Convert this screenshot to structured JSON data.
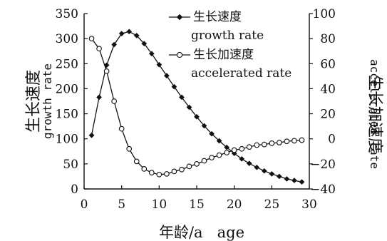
{
  "chart_data": {
    "type": "line",
    "x_label": "年龄/a   age",
    "xlim": [
      0,
      30
    ],
    "x_ticks": [
      0,
      5,
      10,
      15,
      20,
      25,
      30
    ],
    "y_left": {
      "label_cn": "生长速度",
      "label_en": "growth rate",
      "lim": [
        0,
        350
      ],
      "ticks": [
        0,
        50,
        100,
        150,
        200,
        250,
        300,
        350
      ]
    },
    "y_right": {
      "label_cn": "生长加速度",
      "label_en": "accelerated rate",
      "lim": [
        -40,
        100
      ],
      "ticks": [
        -40,
        -20,
        0,
        20,
        40,
        60,
        80,
        100
      ]
    },
    "legend_placement": "top-center",
    "series": [
      {
        "name_cn": "生长速度",
        "name_en": "growth rate",
        "axis": "left",
        "marker": "filled-diamond",
        "x": [
          1,
          2,
          3,
          4,
          5,
          6,
          7,
          8,
          9,
          10,
          11,
          12,
          13,
          14,
          15,
          16,
          17,
          18,
          19,
          20,
          21,
          22,
          23,
          24,
          25,
          26,
          27,
          28,
          29
        ],
        "values": [
          107,
          183,
          247,
          288,
          310,
          314,
          306,
          290,
          270,
          248,
          226,
          204,
          183,
          163,
          144,
          126,
          110,
          96,
          83,
          71,
          60,
          51,
          43,
          36,
          30,
          25,
          20,
          17,
          14
        ]
      },
      {
        "name_cn": "生长加速度",
        "name_en": "accelerated rate",
        "axis": "right",
        "marker": "open-circle",
        "x": [
          1,
          2,
          3,
          4,
          5,
          6,
          7,
          8,
          9,
          10,
          11,
          12,
          13,
          14,
          15,
          16,
          17,
          18,
          19,
          20,
          21,
          22,
          23,
          24,
          25,
          26,
          27,
          28,
          29
        ],
        "values": [
          80,
          72,
          54,
          30,
          8,
          -8,
          -18,
          -24,
          -27,
          -28.5,
          -28,
          -26,
          -24.5,
          -22,
          -20,
          -17.5,
          -15,
          -13,
          -11,
          -9,
          -8,
          -6.5,
          -5,
          -4.5,
          -3.5,
          -3,
          -2,
          -1.5,
          -1
        ]
      }
    ]
  }
}
